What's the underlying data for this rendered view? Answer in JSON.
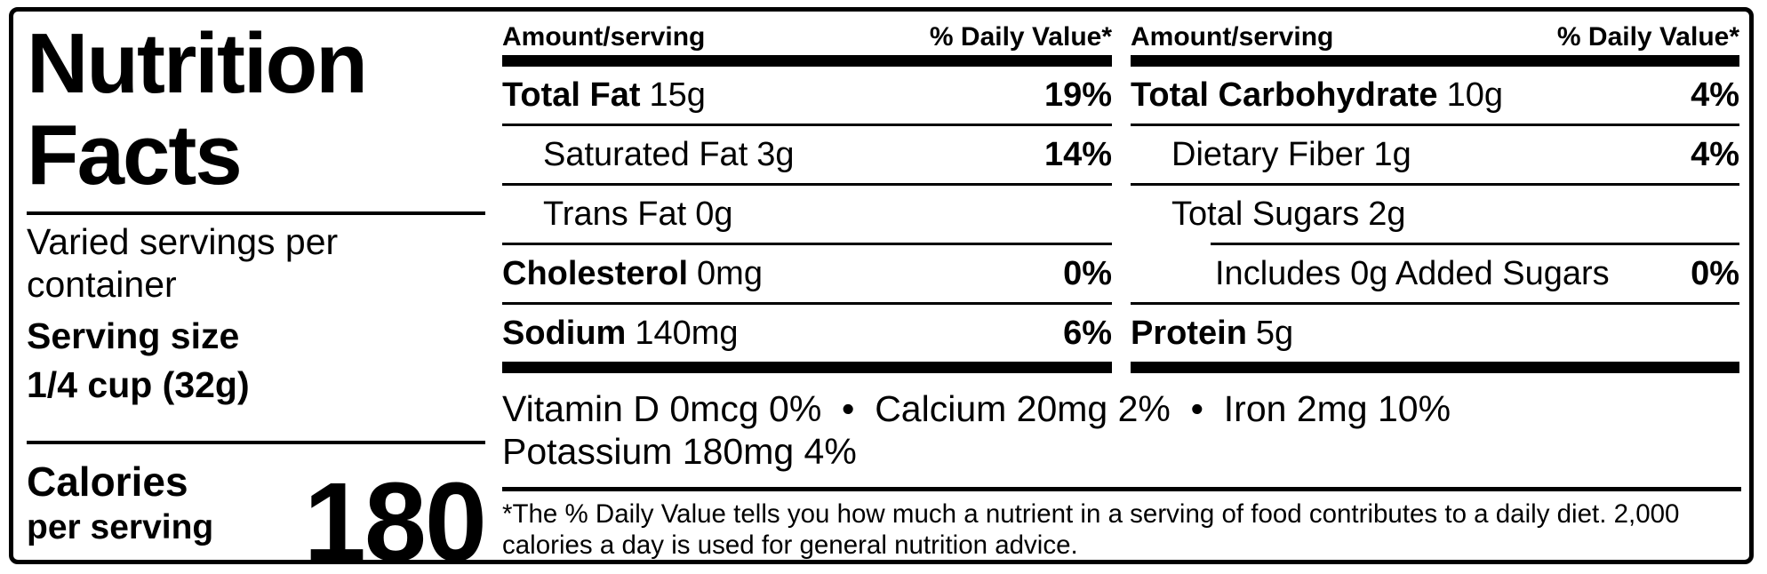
{
  "label": {
    "title_line1": "Nutrition",
    "title_line2": "Facts",
    "servings_per_container": "Varied servings per container",
    "serving_size_label": "Serving size",
    "serving_size_value": "1/4 cup (32g)",
    "calories_label": "Calories",
    "calories_sublabel": "per serving",
    "calories_value": "180"
  },
  "columns": [
    {
      "header_amount": "Amount/serving",
      "header_daily_value": "% Daily Value*",
      "rows": [
        {
          "name": "Total Fat",
          "amount": "15g",
          "dv": "19%"
        },
        {
          "name": "Saturated Fat",
          "amount": "3g",
          "dv": "14%"
        },
        {
          "name": "Trans Fat",
          "amount": "0g",
          "dv": ""
        },
        {
          "name": "Cholesterol",
          "amount": "0mg",
          "dv": "0%"
        },
        {
          "name": "Sodium",
          "amount": "140mg",
          "dv": "6%"
        }
      ]
    },
    {
      "header_amount": "Amount/serving",
      "header_daily_value": "% Daily Value*",
      "rows": [
        {
          "name": "Total Carbohydrate",
          "amount": "10g",
          "dv": "4%"
        },
        {
          "name": "Dietary Fiber",
          "amount": "1g",
          "dv": "4%"
        },
        {
          "name": "Total Sugars",
          "amount": "2g",
          "dv": ""
        },
        {
          "name": "Includes 0g Added Sugars",
          "amount": "",
          "dv": "0%"
        },
        {
          "name": "Protein",
          "amount": "5g",
          "dv": ""
        }
      ]
    }
  ],
  "micronutrients": {
    "line1": "Vitamin D 0mcg 0%  •  Calcium 20mg 2%  •  Iron 2mg 10%",
    "line2": "Potassium 180mg 4%"
  },
  "footnote": "*The % Daily Value tells you how much a nutrient in a serving of food contributes to a daily diet. 2,000 calories a day is used for general nutrition advice.",
  "colors": {
    "ink": "#000000",
    "background": "#ffffff"
  }
}
